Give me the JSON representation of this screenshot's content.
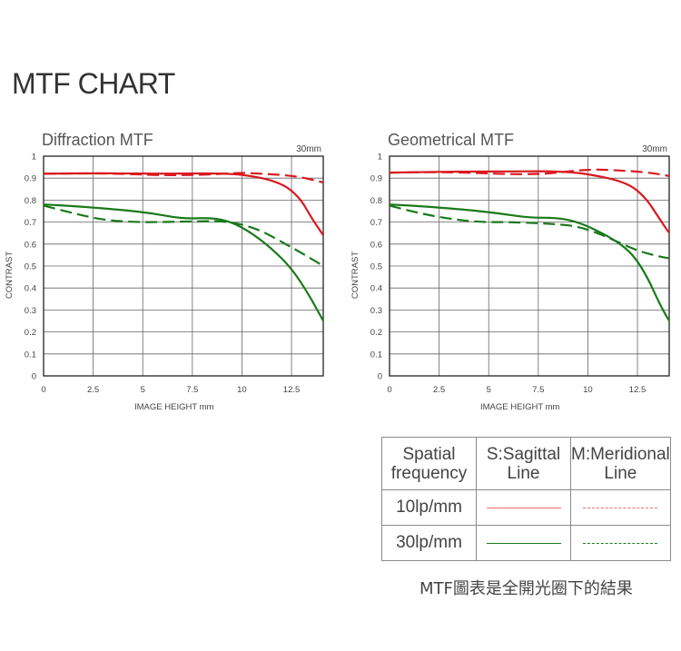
{
  "page": {
    "title": "MTF CHART"
  },
  "colors": {
    "red": "#d9191e",
    "red_light": "#ec7070",
    "green": "#1a7a1a",
    "grid": "#555555"
  },
  "chart_data": [
    {
      "type": "line",
      "title": "Diffraction MTF",
      "corner_label": "30mm",
      "xlabel": "IMAGE HEIGHT   mm",
      "ylabel": "CONTRAST",
      "xlim": [
        0,
        14.1
      ],
      "ylim": [
        0,
        1
      ],
      "xticks": [
        0,
        2.5,
        5,
        7.5,
        10,
        12.5
      ],
      "xtick_labels": [
        "0",
        "2.5",
        "5",
        "7.5",
        "10",
        "12.5"
      ],
      "yticks": [
        0,
        0.1,
        0.2,
        0.3,
        0.4,
        0.5,
        0.6,
        0.7,
        0.8,
        0.9,
        1
      ],
      "ytick_labels": [
        "0",
        "0.1",
        "0.2",
        "0.3",
        "0.4",
        "0.5",
        "0.6",
        "0.7",
        "0.8",
        "0.9",
        "1"
      ],
      "grid": true,
      "series": [
        {
          "freq": "10lp/mm",
          "line": "S",
          "color": "#d9191e",
          "dashed": false,
          "x": [
            0,
            2,
            4,
            6,
            8,
            9.5,
            10.5,
            11.5,
            12.3,
            13,
            13.5,
            14.1
          ],
          "y": [
            0.92,
            0.922,
            0.922,
            0.92,
            0.922,
            0.92,
            0.91,
            0.89,
            0.86,
            0.8,
            0.72,
            0.64
          ]
        },
        {
          "freq": "10lp/mm",
          "line": "M",
          "color": "#d9191e",
          "dashed": true,
          "x": [
            0,
            2,
            4,
            6,
            8,
            9,
            10,
            11,
            12,
            13,
            14.1
          ],
          "y": [
            0.92,
            0.922,
            0.92,
            0.913,
            0.915,
            0.92,
            0.925,
            0.92,
            0.915,
            0.905,
            0.88
          ]
        },
        {
          "freq": "30lp/mm",
          "line": "S",
          "color": "#1a7a1a",
          "dashed": false,
          "x": [
            0,
            2,
            4,
            5.5,
            7,
            8.5,
            9.5,
            10.5,
            11.5,
            12.5,
            13.3,
            13.8,
            14.1
          ],
          "y": [
            0.78,
            0.77,
            0.755,
            0.74,
            0.715,
            0.72,
            0.7,
            0.65,
            0.58,
            0.49,
            0.38,
            0.3,
            0.25
          ]
        },
        {
          "freq": "30lp/mm",
          "line": "M",
          "color": "#1a7a1a",
          "dashed": true,
          "x": [
            0,
            1.5,
            3,
            4.5,
            6,
            7.5,
            9,
            10,
            11,
            12,
            13,
            14.1
          ],
          "y": [
            0.775,
            0.74,
            0.71,
            0.7,
            0.7,
            0.703,
            0.705,
            0.69,
            0.66,
            0.61,
            0.56,
            0.5
          ]
        }
      ]
    },
    {
      "type": "line",
      "title": "Geometrical MTF",
      "corner_label": "30mm",
      "xlabel": "IMAGE HEIGHT   mm",
      "ylabel": "CONTRAST",
      "xlim": [
        0,
        14.1
      ],
      "ylim": [
        0,
        1
      ],
      "xticks": [
        0,
        2.5,
        5,
        7.5,
        10,
        12.5
      ],
      "xtick_labels": [
        "0",
        "2.5",
        "5",
        "7.5",
        "10",
        "12.5"
      ],
      "yticks": [
        0,
        0.1,
        0.2,
        0.3,
        0.4,
        0.5,
        0.6,
        0.7,
        0.8,
        0.9,
        1
      ],
      "ytick_labels": [
        "0",
        "0.1",
        "0.2",
        "0.3",
        "0.4",
        "0.5",
        "0.6",
        "0.7",
        "0.8",
        "0.9",
        "1"
      ],
      "grid": true,
      "series": [
        {
          "freq": "10lp/mm",
          "line": "S",
          "color": "#d9191e",
          "dashed": false,
          "x": [
            0,
            2,
            4,
            6,
            8,
            9.5,
            10.5,
            11.5,
            12.3,
            13,
            13.5,
            14.1
          ],
          "y": [
            0.925,
            0.928,
            0.93,
            0.93,
            0.932,
            0.925,
            0.91,
            0.89,
            0.86,
            0.8,
            0.73,
            0.65
          ]
        },
        {
          "freq": "10lp/mm",
          "line": "M",
          "color": "#d9191e",
          "dashed": true,
          "x": [
            0,
            2,
            4,
            6,
            7.5,
            8.5,
            9.5,
            10.5,
            11.5,
            12.5,
            13.5,
            14.1
          ],
          "y": [
            0.925,
            0.928,
            0.925,
            0.918,
            0.918,
            0.925,
            0.935,
            0.94,
            0.935,
            0.93,
            0.92,
            0.91
          ]
        },
        {
          "freq": "30lp/mm",
          "line": "S",
          "color": "#1a7a1a",
          "dashed": false,
          "x": [
            0,
            2,
            4,
            5.5,
            7,
            8.5,
            9.5,
            10.5,
            11.5,
            12.3,
            13,
            13.6,
            14.1
          ],
          "y": [
            0.78,
            0.77,
            0.755,
            0.74,
            0.72,
            0.72,
            0.7,
            0.66,
            0.61,
            0.55,
            0.45,
            0.33,
            0.25
          ]
        },
        {
          "freq": "30lp/mm",
          "line": "M",
          "color": "#1a7a1a",
          "dashed": true,
          "x": [
            0,
            1.5,
            3,
            4.5,
            6,
            7.5,
            8.5,
            9.5,
            10.5,
            11.5,
            12.5,
            13.5,
            14.1
          ],
          "y": [
            0.775,
            0.74,
            0.715,
            0.7,
            0.7,
            0.695,
            0.69,
            0.68,
            0.65,
            0.61,
            0.57,
            0.545,
            0.535
          ]
        }
      ]
    }
  ],
  "legend": {
    "header": [
      "Spatial\nfrequency",
      "S:Sagittal\nLine",
      "M:Meridional\nLine"
    ],
    "header_lines": [
      [
        "Spatial",
        "frequency"
      ],
      [
        "S:Sagittal",
        "Line"
      ],
      [
        "M:Meridional",
        "Line"
      ]
    ],
    "rows": [
      {
        "label": "10lp/mm",
        "color": "#ec7070"
      },
      {
        "label": "30lp/mm",
        "color": "#1a7a1a"
      }
    ]
  },
  "footnote": "MTF圖表是全開光圈下的結果"
}
